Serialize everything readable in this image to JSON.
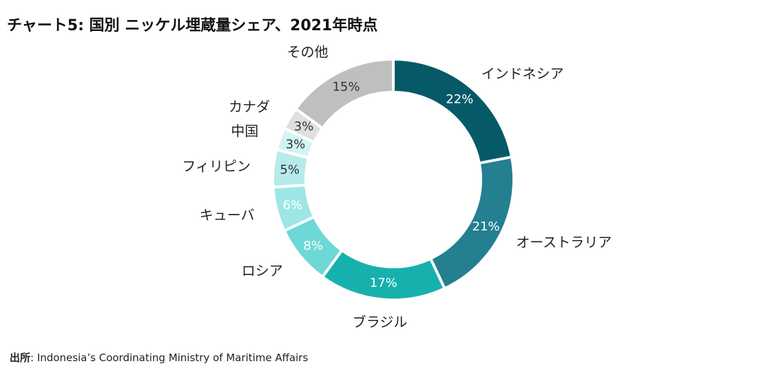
{
  "title": "チャート5: 国別 ニッケル埋蔵量シェア、2021年時点",
  "source": {
    "prefix": "出所",
    "text": ": Indonesia’s Coordinating Ministry of Maritime Affairs"
  },
  "colors": {
    "separator": "#ffffff",
    "label_text": "#222222"
  },
  "chart_data": {
    "type": "pie",
    "style": "donut",
    "title": "チャート5: 国別 ニッケル埋蔵量シェア、2021年時点",
    "unit": "%",
    "categories": [
      "インドネシア",
      "オーストラリア",
      "ブラジル",
      "ロシア",
      "キューバ",
      "フィリピン",
      "中国",
      "カナダ",
      "その他"
    ],
    "values": [
      22,
      21,
      17,
      8,
      6,
      5,
      3,
      3,
      15
    ],
    "labels": [
      "22%",
      "21%",
      "17%",
      "8%",
      "6%",
      "5%",
      "3%",
      "3%",
      "15%"
    ],
    "colors": [
      "#065a68",
      "#247f91",
      "#17b1ad",
      "#6ed8d7",
      "#9ee6e6",
      "#b5ebea",
      "#d2f4f4",
      "#dfdfdf",
      "#bfbfbf"
    ],
    "value_label_colors": [
      "#ffffff",
      "#ffffff",
      "#ffffff",
      "#ffffff",
      "#ffffff",
      "#333333",
      "#333333",
      "#333333",
      "#333333"
    ],
    "start": "12 o'clock",
    "direction": "clockwise",
    "legend": "none"
  }
}
